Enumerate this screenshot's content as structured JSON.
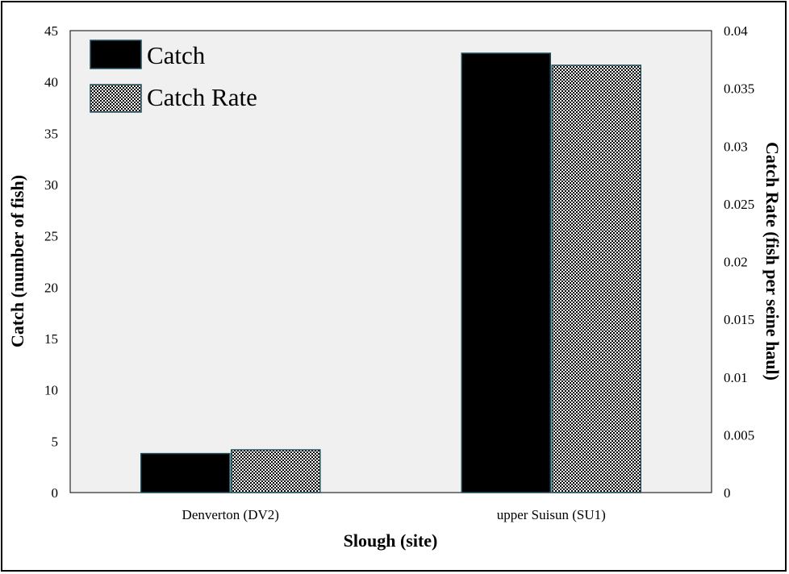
{
  "chart_data": {
    "type": "bar",
    "categories": [
      "Denverton (DV2)",
      "upper Suisun (SU1)"
    ],
    "series": [
      {
        "name": "Catch",
        "axis": "left",
        "values": [
          3.8,
          42.8
        ],
        "fill": "black"
      },
      {
        "name": "Catch Rate",
        "axis": "right",
        "values": [
          0.0037,
          0.037
        ],
        "fill": "checkered"
      }
    ],
    "xlabel": "Slough (site)",
    "ylabel": "Catch (number of fish)",
    "y2label": "Catch Rate (fish per seine haul)",
    "ylim": [
      0,
      45
    ],
    "y2lim": [
      0,
      0.04
    ],
    "yticks": [
      "0",
      "5",
      "10",
      "15",
      "20",
      "25",
      "30",
      "35",
      "40",
      "45"
    ],
    "y2ticks": [
      "0",
      "0.005",
      "0.01",
      "0.015",
      "0.02",
      "0.025",
      "0.03",
      "0.035",
      "0.04"
    ],
    "legend_position": "top-left",
    "grid": false,
    "colors": {
      "plot_background": "#f0f0f0",
      "bar_outline": "#1f4e5a",
      "catch_fill": "#000000"
    }
  }
}
